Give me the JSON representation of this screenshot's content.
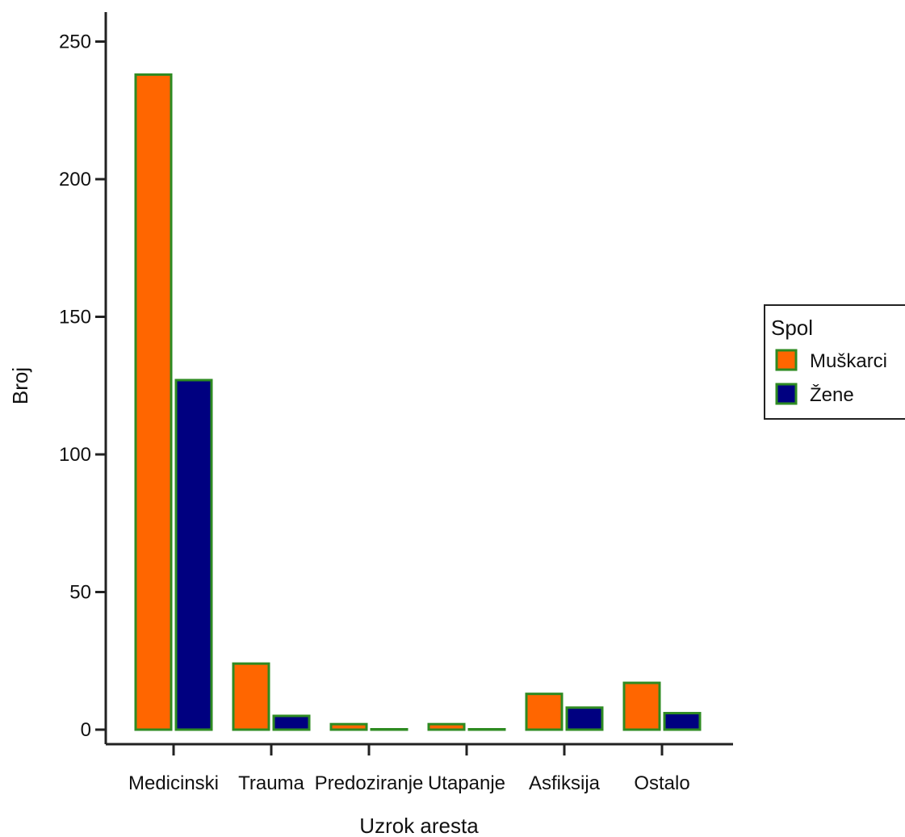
{
  "chart_data": {
    "type": "bar",
    "title": "",
    "xlabel": "Uzrok aresta",
    "ylabel": "Broj",
    "categories": [
      "Medicinski",
      "Trauma",
      "Predoziranje",
      "Utapanje",
      "Asfiksija",
      "Ostalo"
    ],
    "series": [
      {
        "name": "Muškarci",
        "color": "#ff6600",
        "values": [
          238,
          24,
          2,
          2,
          13,
          17
        ]
      },
      {
        "name": "Žene",
        "color": "#000080",
        "values": [
          127,
          5,
          0,
          0,
          8,
          6
        ]
      }
    ],
    "bar_outline_color": "#2e8b22",
    "yticks": [
      0,
      50,
      100,
      150,
      200,
      250
    ],
    "ylim": [
      0,
      260
    ],
    "grid": false,
    "legend": {
      "title": "Spol",
      "placement": "right"
    }
  }
}
